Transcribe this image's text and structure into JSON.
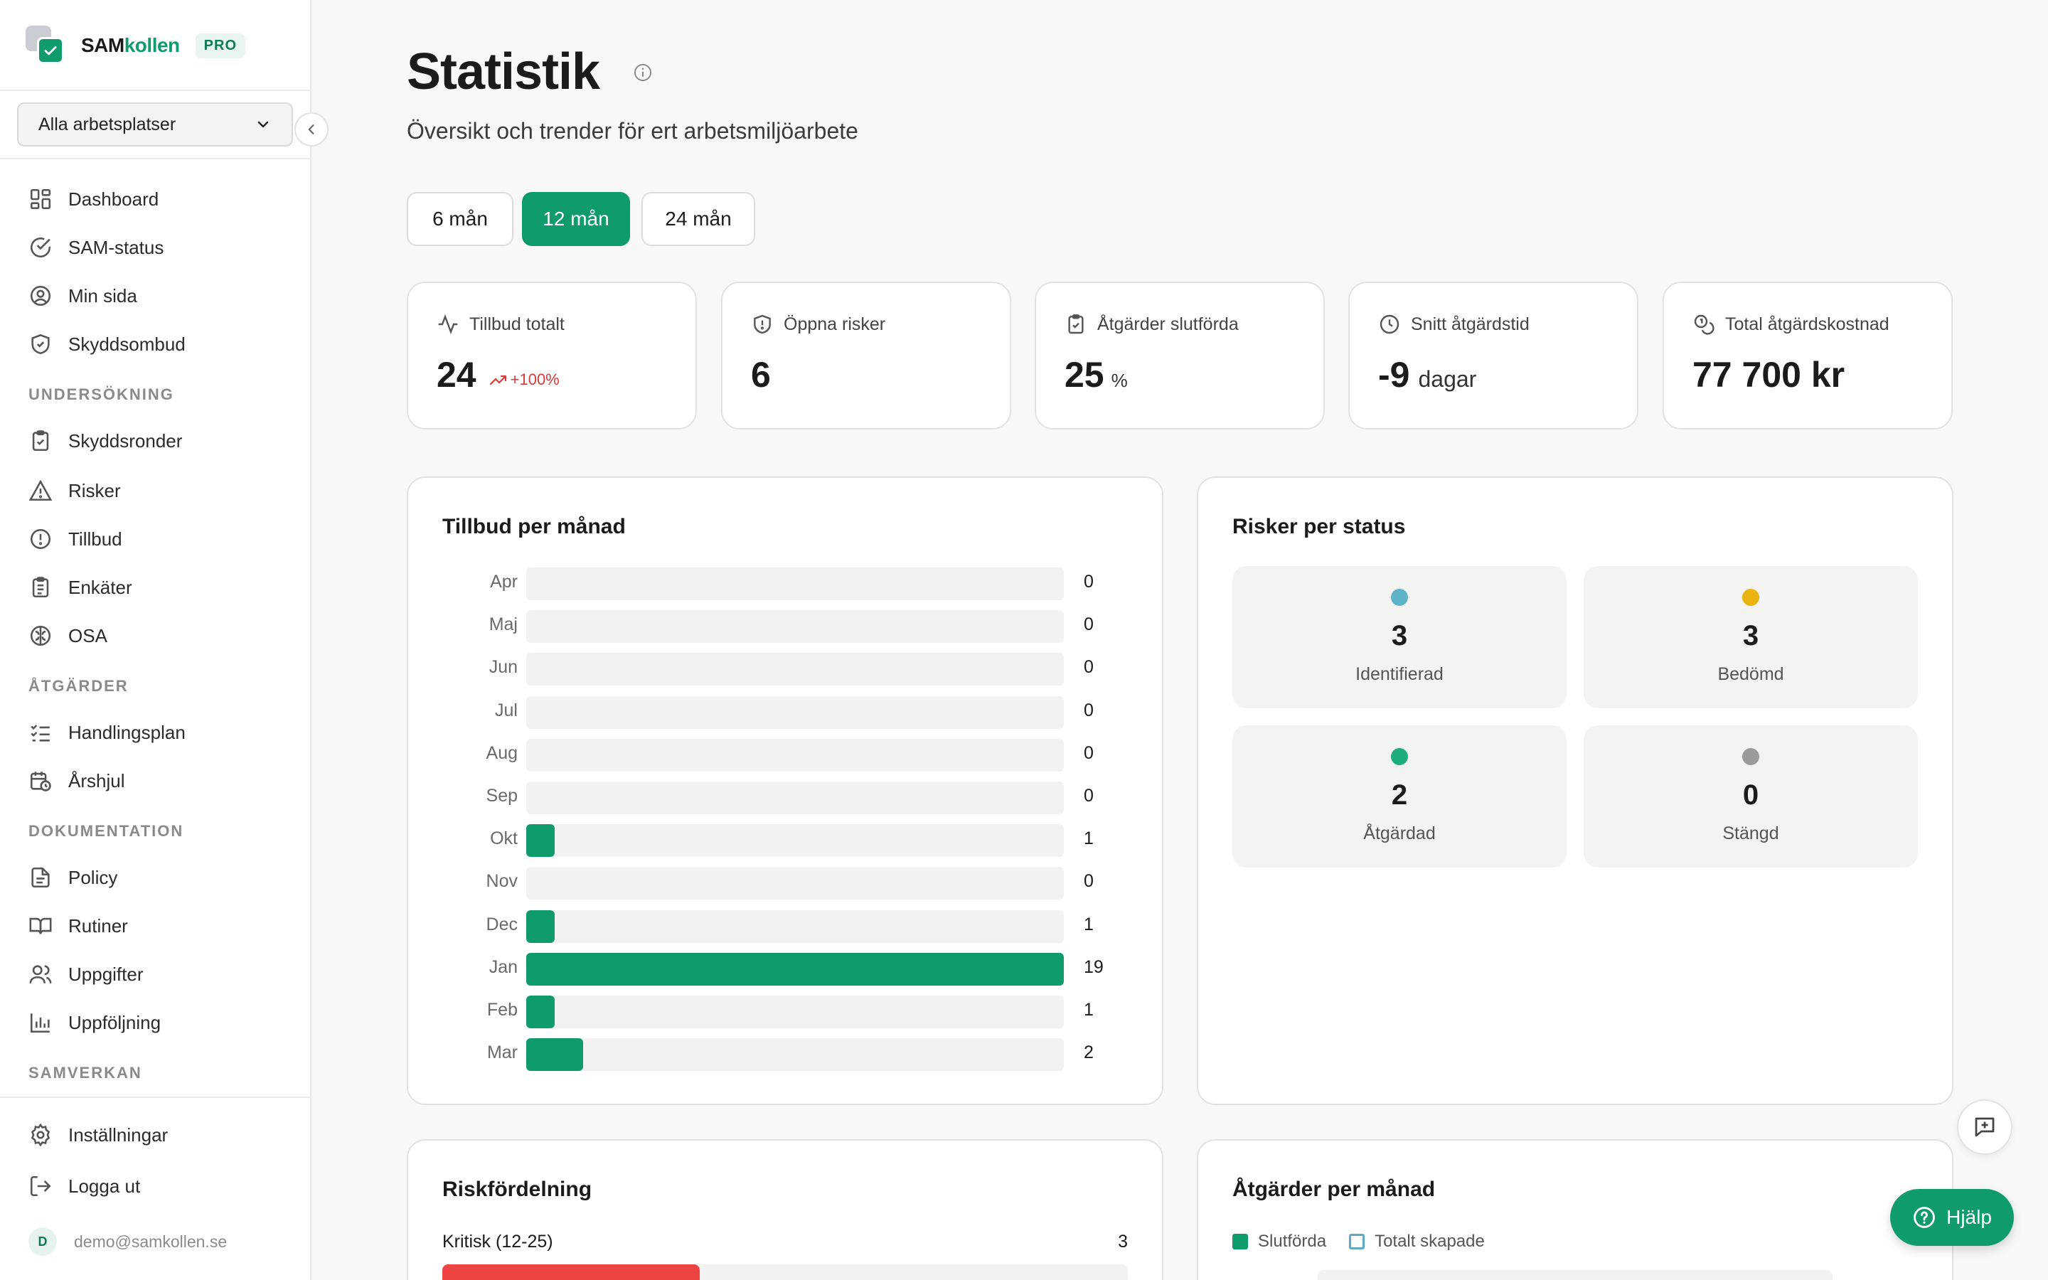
{
  "brand": {
    "name_part1": "SAM",
    "name_part2": "kollen",
    "badge": "PRO",
    "accent": "#0f9b6c"
  },
  "sidebar": {
    "workplace_select": "Alla arbetsplatser",
    "nav_main": [
      {
        "label": "Dashboard",
        "icon": "dashboard-icon"
      },
      {
        "label": "SAM-status",
        "icon": "check-circle-icon"
      },
      {
        "label": "Min sida",
        "icon": "user-circle-icon"
      },
      {
        "label": "Skyddsombud",
        "icon": "shield-check-icon"
      }
    ],
    "sections": {
      "undersokning": "UNDERSÖKNING",
      "atgarder": "ÅTGÄRDER",
      "dokumentation": "DOKUMENTATION",
      "samverkan": "SAMVERKAN"
    },
    "nav_undersokning": [
      {
        "label": "Skyddsronder",
        "icon": "clipboard-check-icon"
      },
      {
        "label": "Risker",
        "icon": "warning-triangle-icon"
      },
      {
        "label": "Tillbud",
        "icon": "alert-circle-icon"
      },
      {
        "label": "Enkäter",
        "icon": "clipboard-list-icon"
      },
      {
        "label": "OSA",
        "icon": "brain-icon"
      }
    ],
    "nav_atgarder": [
      {
        "label": "Handlingsplan",
        "icon": "list-check-icon"
      },
      {
        "label": "Årshjul",
        "icon": "calendar-clock-icon"
      }
    ],
    "nav_dokumentation": [
      {
        "label": "Policy",
        "icon": "file-text-icon"
      },
      {
        "label": "Rutiner",
        "icon": "book-open-icon"
      },
      {
        "label": "Uppgifter",
        "icon": "users-icon"
      },
      {
        "label": "Uppföljning",
        "icon": "bar-chart-icon"
      }
    ],
    "settings": "Inställningar",
    "logout": "Logga ut",
    "user": {
      "initial": "D",
      "email": "demo@samkollen.se"
    }
  },
  "header": {
    "title": "Statistik",
    "subtitle": "Översikt och trender för ert arbetsmiljöarbete"
  },
  "periods": [
    {
      "label": "6 mån",
      "active": false
    },
    {
      "label": "12 mån",
      "active": true
    },
    {
      "label": "24 mån",
      "active": false
    }
  ],
  "kpis": [
    {
      "label": "Tillbud totalt",
      "value": "24",
      "trend": "+100%",
      "icon": "activity-icon"
    },
    {
      "label": "Öppna risker",
      "value": "6",
      "icon": "shield-alert-icon"
    },
    {
      "label": "Åtgärder slutförda",
      "value": "25",
      "unit": "%",
      "icon": "clipboard-check-icon"
    },
    {
      "label": "Snitt åtgärdstid",
      "value": "-9",
      "unit": "dagar",
      "icon": "clock-icon"
    },
    {
      "label": "Total åtgärdskostnad",
      "value": "77 700 kr",
      "icon": "coins-icon"
    }
  ],
  "chart_data": [
    {
      "type": "bar",
      "title": "Tillbud per månad",
      "orientation": "horizontal",
      "categories": [
        "Apr",
        "Maj",
        "Jun",
        "Jul",
        "Aug",
        "Sep",
        "Okt",
        "Nov",
        "Dec",
        "Jan",
        "Feb",
        "Mar"
      ],
      "values": [
        0,
        0,
        0,
        0,
        0,
        0,
        1,
        0,
        1,
        19,
        1,
        2
      ],
      "xlim": [
        0,
        19
      ],
      "color": "#0f9b6c"
    }
  ],
  "risk_status": {
    "title": "Risker per status",
    "items": [
      {
        "count": "3",
        "label": "Identifierad",
        "color": "#5fb3c8"
      },
      {
        "count": "3",
        "label": "Bedömd",
        "color": "#e9b412"
      },
      {
        "count": "2",
        "label": "Åtgärdad",
        "color": "#1fae7b"
      },
      {
        "count": "0",
        "label": "Stängd",
        "color": "#9a9a98"
      }
    ]
  },
  "risk_distribution": {
    "title": "Riskfördelning",
    "rows": [
      {
        "label": "Kritisk (12-25)",
        "count": "3",
        "fraction": 0.375,
        "color": "#ef4444"
      }
    ]
  },
  "actions_per_month": {
    "title": "Åtgärder per månad",
    "legend": [
      "Slutförda",
      "Totalt skapade"
    ]
  },
  "help": {
    "label": "Hjälp"
  }
}
